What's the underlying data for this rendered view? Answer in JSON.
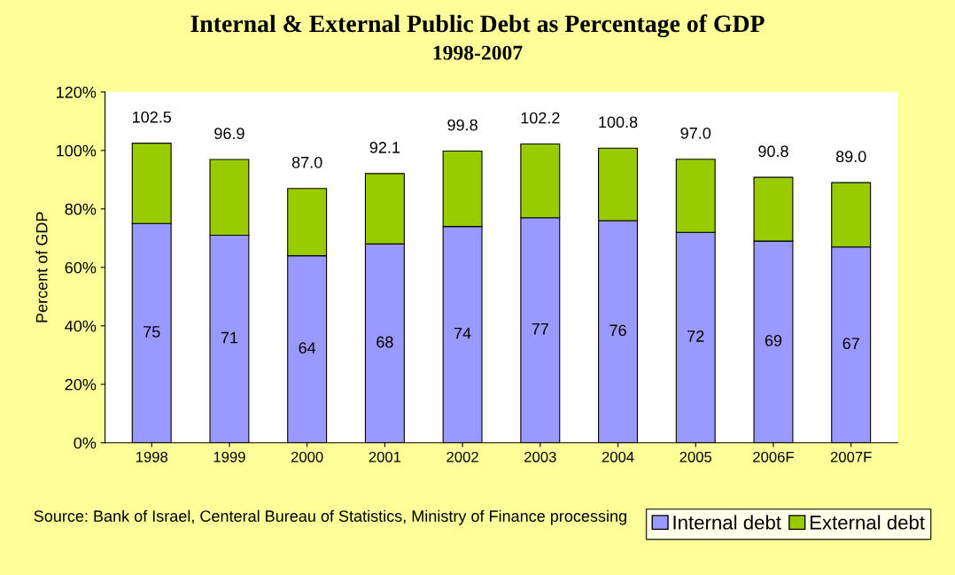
{
  "chart_data": {
    "type": "bar",
    "title": "Internal & External Public Debt as Percentage of GDP",
    "subtitle": "1998-2007",
    "ylabel": "Percent of GDP",
    "categories": [
      "1998",
      "1999",
      "2000",
      "2001",
      "2002",
      "2003",
      "2004",
      "2005",
      "2006F",
      "2007F"
    ],
    "stacked": true,
    "series": [
      {
        "name": "Internal debt",
        "color": "#9999ff",
        "values": [
          75,
          71,
          64,
          68,
          74,
          77,
          76,
          72,
          69,
          67
        ],
        "value_labels": [
          "75",
          "71",
          "64",
          "68",
          "74",
          "77",
          "76",
          "72",
          "69",
          "67"
        ]
      },
      {
        "name": "External debt",
        "color": "#99cc00",
        "values": [
          27.5,
          25.9,
          23.0,
          24.1,
          25.8,
          25.2,
          24.8,
          25.0,
          21.8,
          22.0
        ]
      }
    ],
    "totals": [
      "102.5",
      "96.9",
      "87.0",
      "92.1",
      "99.8",
      "102.2",
      "100.8",
      "97.0",
      "90.8",
      "89.0"
    ],
    "ylim": [
      0,
      120
    ],
    "yticks": [
      {
        "value": 0,
        "label": "0%"
      },
      {
        "value": 20,
        "label": "20%"
      },
      {
        "value": 40,
        "label": "40%"
      },
      {
        "value": 60,
        "label": "60%"
      },
      {
        "value": 80,
        "label": "80%"
      },
      {
        "value": 100,
        "label": "100%"
      },
      {
        "value": 120,
        "label": "120%"
      }
    ],
    "grid": false,
    "legend": "bottom right",
    "annotations": [
      "Source: Bank of Israel, Centeral Bureau of Statistics, Ministry of Finance processing"
    ]
  }
}
